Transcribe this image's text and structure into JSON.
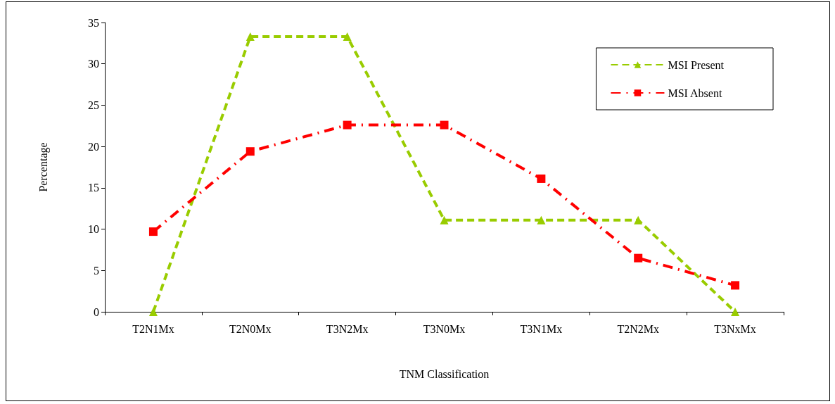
{
  "chart_data": {
    "type": "line",
    "xlabel": "TNM Classification",
    "ylabel": "Percentage",
    "categories": [
      "T2N1Mx",
      "T2N0Mx",
      "T3N2Mx",
      "T3N0Mx",
      "T3N1Mx",
      "T2N2Mx",
      "T3NxMx"
    ],
    "series": [
      {
        "name": "MSI Present",
        "color": "#99cc00",
        "marker": "triangle",
        "line_style": "dashed",
        "values": [
          0,
          33.3,
          33.3,
          11.1,
          11.1,
          11.1,
          0
        ]
      },
      {
        "name": "MSI Absent",
        "color": "#ff0000",
        "marker": "square",
        "line_style": "dashdot",
        "values": [
          9.7,
          19.4,
          22.6,
          22.6,
          16.1,
          6.5,
          3.2
        ]
      }
    ],
    "ylim": [
      0,
      35
    ],
    "yticks": [
      0,
      5,
      10,
      15,
      20,
      25,
      30,
      35
    ],
    "grid": false,
    "legend": "top right"
  }
}
